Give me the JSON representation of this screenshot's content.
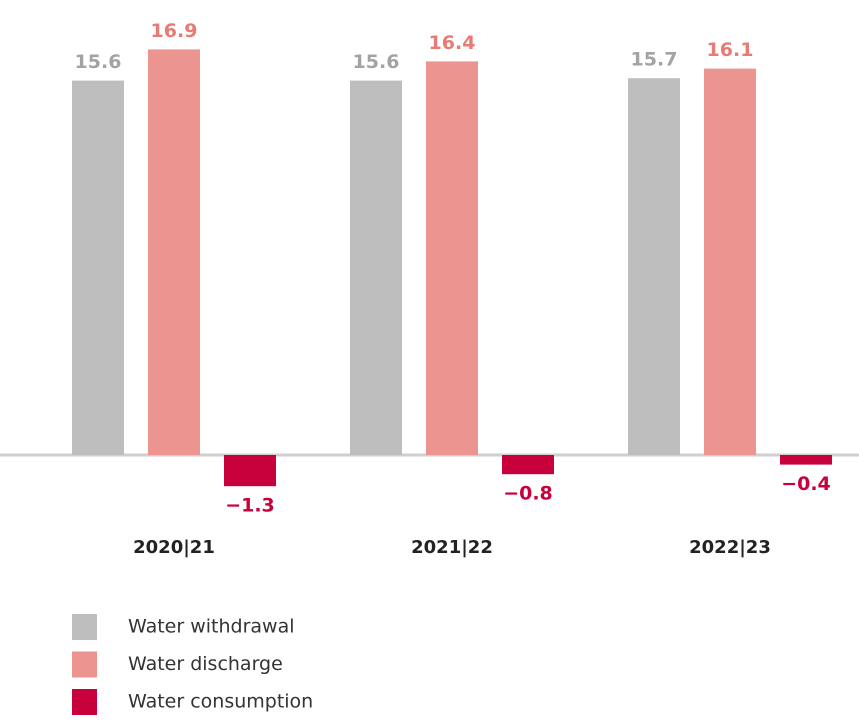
{
  "chart_data": {
    "type": "bar",
    "categories": [
      "2020|21",
      "2021|22",
      "2022|23"
    ],
    "series": [
      {
        "name": "Water withdrawal",
        "color": "#bebebe",
        "label_color": "#a3a3a3",
        "values": [
          15.6,
          15.6,
          15.7
        ]
      },
      {
        "name": "Water discharge",
        "color": "#ec948f",
        "label_color": "#e87c75",
        "values": [
          16.9,
          16.4,
          16.1
        ]
      },
      {
        "name": "Water consumption",
        "color": "#c8003c",
        "label_color": "#c8003c",
        "values": [
          -1.3,
          -0.8,
          -0.4
        ],
        "value_labels": [
          "−1.3",
          "−0.8",
          "−0.4"
        ]
      }
    ]
  }
}
